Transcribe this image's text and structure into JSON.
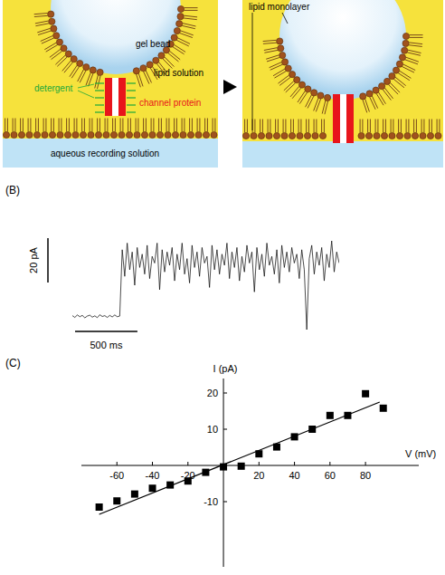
{
  "diagram": {
    "before": {
      "gel_bead": "gel bead",
      "lipid_solution": "lipid solution",
      "detergent": "detergent",
      "channel_protein": "channel protein",
      "aqueous": "aqueous recording solution"
    },
    "after": {
      "lipid_monolayer": "lipid monolayer"
    }
  },
  "chart_data": [
    {
      "panel_label": "(B)",
      "type": "line",
      "color": "#000000",
      "tick_labels": false,
      "x": [
        0,
        20,
        40,
        60,
        80,
        100,
        120,
        140,
        160,
        180,
        200,
        220,
        240,
        260,
        280,
        300,
        320,
        340,
        360,
        380,
        400,
        420,
        440,
        460,
        480,
        500,
        520,
        540,
        560,
        580,
        600,
        620,
        640,
        660,
        680,
        700,
        720,
        740,
        760,
        780,
        800,
        820,
        840,
        860,
        880,
        900,
        920,
        940,
        960,
        980,
        1000,
        1020,
        1040,
        1060,
        1080,
        1100,
        1120,
        1140,
        1160,
        1180,
        1200,
        1220,
        1240,
        1260,
        1280,
        1300,
        1320,
        1340,
        1360,
        1380,
        1400,
        1420,
        1440,
        1460,
        1480,
        1500,
        1520,
        1540,
        1560,
        1580,
        1600,
        1620,
        1640,
        1660,
        1680,
        1700,
        1720,
        1740,
        1760,
        1780,
        1800,
        1820,
        1840,
        1860,
        1880,
        1900,
        1920,
        1940,
        1960,
        1980,
        2000,
        2020,
        2040,
        2060,
        2080,
        2100,
        2120,
        2140
      ],
      "values": [
        0.3,
        -0.5,
        0.6,
        -0.2,
        0.4,
        -0.7,
        0.1,
        0.5,
        -0.4,
        0.2,
        -0.6,
        0.7,
        -0.1,
        0.3,
        -0.5,
        0.4,
        -0.3,
        0.6,
        -0.2,
        0.1,
        30,
        18,
        33,
        21,
        29,
        14,
        31,
        22,
        28,
        19,
        32,
        17,
        27,
        24,
        33,
        12,
        30,
        20,
        29,
        23,
        31,
        16,
        28,
        21,
        33,
        19,
        26,
        15,
        32,
        22,
        29,
        18,
        31,
        24,
        27,
        13,
        32,
        21,
        30,
        19,
        28,
        23,
        33,
        17,
        29,
        22,
        31,
        16,
        27,
        20,
        32,
        24,
        29,
        11,
        31,
        21,
        28,
        18,
        33,
        23,
        27,
        19,
        30,
        15,
        32,
        22,
        29,
        20,
        31,
        24,
        28,
        17,
        30,
        21,
        -6,
        26,
        32,
        19,
        29,
        23,
        31,
        16,
        28,
        22,
        34,
        20,
        29,
        24
      ],
      "xlim": [
        0,
        2140
      ],
      "ylim": [
        -6,
        34
      ],
      "scale_bars": [
        {
          "value": 20,
          "label": "20 pA",
          "axis": "y"
        },
        {
          "value": 500,
          "label": "500 ms",
          "axis": "x"
        }
      ]
    },
    {
      "panel_label": "(C)",
      "type": "scatter",
      "x_label": "V (mV)",
      "y_label": "I (pA)",
      "color": "#000000",
      "marker": "square",
      "x": [
        -70,
        -60,
        -50,
        -40,
        -30,
        -20,
        -10,
        0,
        10,
        20,
        30,
        40,
        50,
        60,
        70,
        80,
        90
      ],
      "values": [
        -11.5,
        -9.8,
        -7.9,
        -6.3,
        -5.4,
        -4.3,
        -1.9,
        -0.4,
        -0.2,
        3.2,
        5.1,
        7.9,
        10,
        13.8,
        13.8,
        19.8,
        15.8
      ],
      "fit": {
        "x": [
          -70,
          88
        ],
        "y": [
          -13.5,
          17.5
        ]
      },
      "xlim": [
        -80,
        110
      ],
      "ylim": [
        -28,
        24
      ],
      "xticks": [
        -60,
        -40,
        -20,
        20,
        40,
        60,
        80
      ],
      "yticks": [
        -10,
        10,
        20
      ]
    }
  ]
}
